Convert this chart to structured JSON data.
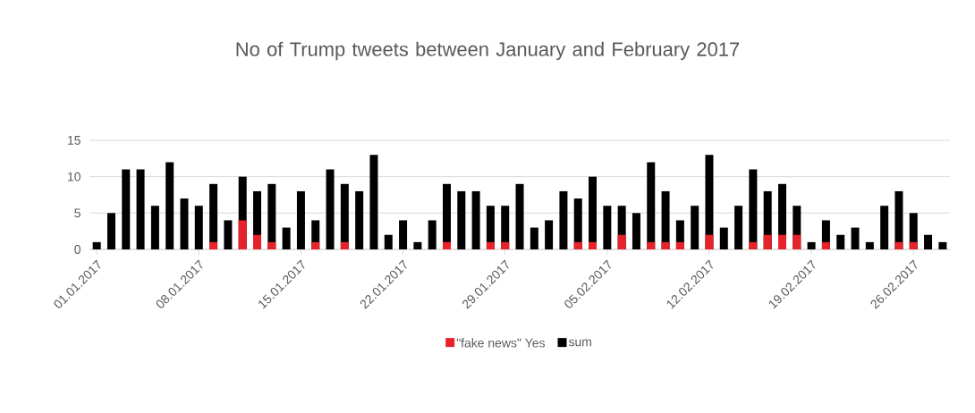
{
  "chart_data": {
    "type": "bar",
    "title": "No of Trump tweets between January and February 2017",
    "categories": [
      "01.01.2017",
      null,
      null,
      null,
      null,
      null,
      null,
      "08.01.2017",
      null,
      null,
      null,
      null,
      null,
      null,
      "15.01.2017",
      null,
      null,
      null,
      null,
      null,
      null,
      "22.01.2017",
      null,
      null,
      null,
      null,
      null,
      null,
      "29.01.2017",
      null,
      null,
      null,
      null,
      null,
      null,
      "05.02.2017",
      null,
      null,
      null,
      null,
      null,
      null,
      "12.02.2017",
      null,
      null,
      null,
      null,
      null,
      null,
      "19.02.2017",
      null,
      null,
      null,
      null,
      null,
      null,
      "26.02.2017",
      null,
      null
    ],
    "series": [
      {
        "name": "sum",
        "color": "#000000",
        "values": [
          1,
          5,
          11,
          11,
          6,
          12,
          7,
          6,
          9,
          4,
          10,
          8,
          9,
          3,
          8,
          4,
          11,
          9,
          8,
          13,
          2,
          4,
          1,
          4,
          9,
          8,
          8,
          6,
          6,
          9,
          3,
          4,
          8,
          7,
          10,
          6,
          6,
          5,
          12,
          8,
          4,
          6,
          13,
          3,
          6,
          11,
          8,
          9,
          6,
          1,
          4,
          2,
          3,
          1,
          6,
          8,
          5,
          2,
          1
        ]
      },
      {
        "name": "\"fake news\" Yes",
        "color": "#e8222a",
        "values": [
          null,
          null,
          null,
          null,
          null,
          null,
          null,
          null,
          1,
          null,
          4,
          2,
          1,
          null,
          null,
          1,
          null,
          1,
          null,
          null,
          null,
          null,
          null,
          null,
          1,
          null,
          null,
          1,
          1,
          null,
          null,
          null,
          null,
          1,
          1,
          null,
          2,
          null,
          1,
          1,
          1,
          null,
          2,
          null,
          null,
          1,
          2,
          2,
          2,
          null,
          1,
          null,
          null,
          null,
          null,
          1,
          1,
          null,
          null
        ]
      }
    ],
    "ylim": [
      0,
      15
    ],
    "yticks": [
      0,
      5,
      10,
      15
    ],
    "grid": "y",
    "legend": "bottom"
  }
}
